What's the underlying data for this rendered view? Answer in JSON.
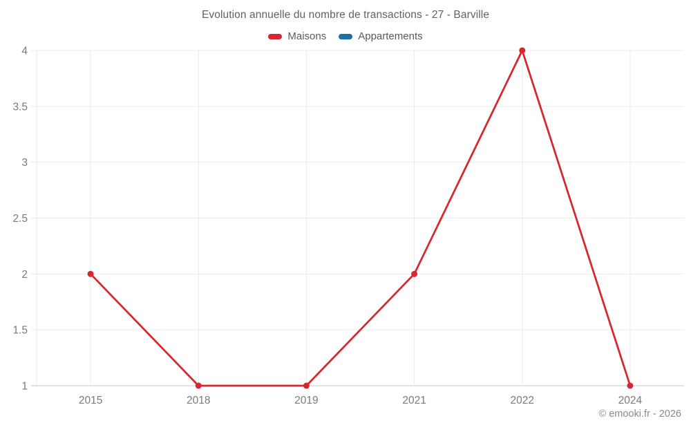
{
  "chart_data": {
    "type": "line",
    "title": "Evolution annuelle du nombre de transactions - 27 - Barville",
    "categories": [
      "2015",
      "2018",
      "2019",
      "2021",
      "2022",
      "2024"
    ],
    "series": [
      {
        "name": "Maisons",
        "color": "#d7282f",
        "values": [
          2,
          1,
          1,
          2,
          4,
          1
        ]
      },
      {
        "name": "Appartements",
        "color": "#1c6ea4",
        "values": []
      }
    ],
    "yticks": [
      1,
      1.5,
      2,
      2.5,
      3,
      3.5,
      4
    ],
    "ytick_labels": [
      "1",
      "1.5",
      "2",
      "2.5",
      "3",
      "3.5",
      "4"
    ],
    "ylim": [
      1,
      4
    ],
    "grid": true,
    "legend_position": "top",
    "xlabel": "",
    "ylabel": "",
    "copyright": "© emooki.fr - 2026"
  },
  "colors": {
    "gridline": "#ebebeb",
    "axis_line": "#c9c9c9",
    "tick_label": "#7a7a7a",
    "title_text": "#616161",
    "legend_text": "#595959",
    "copyright_text": "#8a8a8a"
  }
}
